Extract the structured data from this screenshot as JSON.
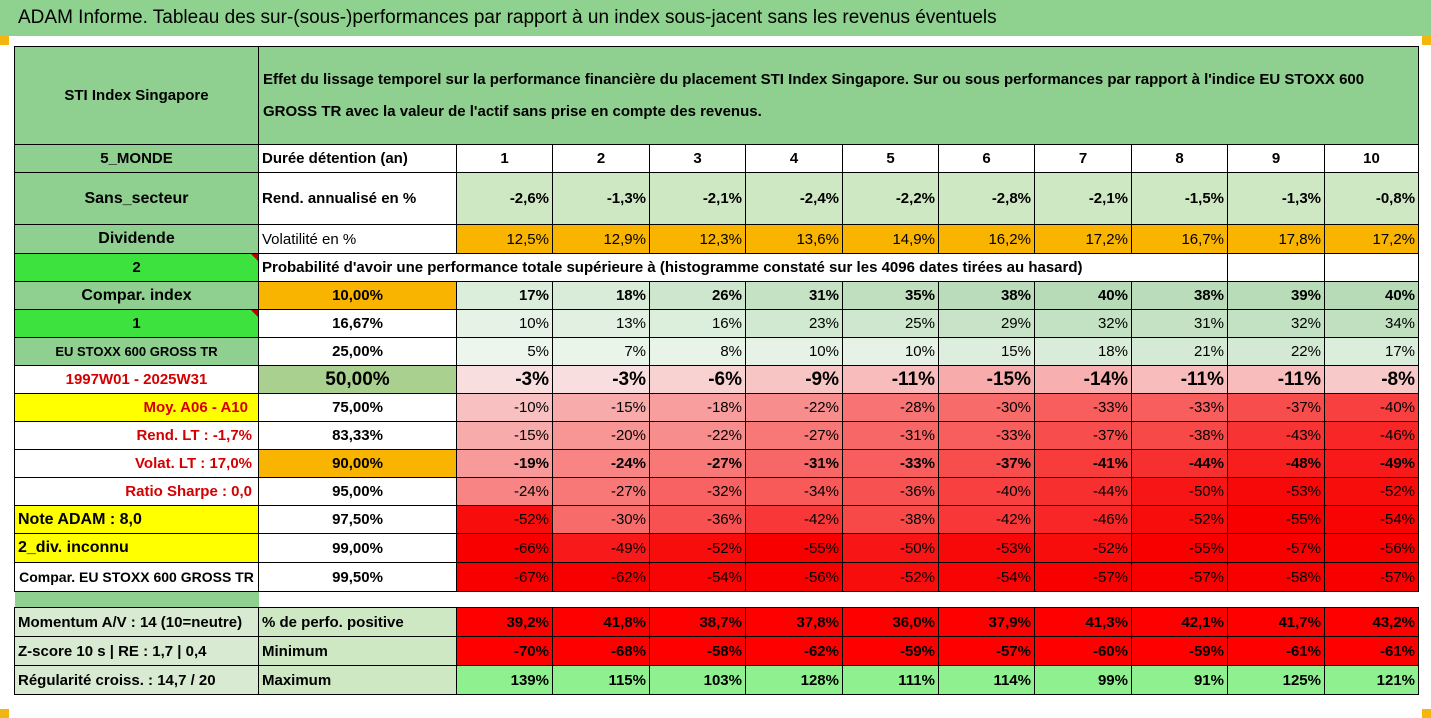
{
  "title": "ADAM Informe. Tableau des sur-(sous-)performances par rapport à un index sous-jacent sans les revenus éventuels",
  "header": {
    "asset": "STI Index Singapore",
    "description": "Effet du lissage temporel sur la performance financière du placement STI Index Singapore. Sur ou sous performances par rapport à l'indice EU STOXX 600 GROSS TR avec la valeur de l'actif sans prise en compte des revenus."
  },
  "colors": {
    "label_green": "#8fcf8f",
    "orange": "#f9b400",
    "bright_green": "#3ee23e",
    "yellow": "#ffff00",
    "red_text": "#d40000"
  },
  "rows": {
    "duration": {
      "left": "5_MONDE",
      "label": "Durée détention (an)",
      "values": [
        "1",
        "2",
        "3",
        "4",
        "5",
        "6",
        "7",
        "8",
        "9",
        "10"
      ]
    },
    "annual": {
      "left": "Sans_secteur",
      "label": "Rend. annualisé en %",
      "values": [
        "-2,6%",
        "-1,3%",
        "-2,1%",
        "-2,4%",
        "-2,2%",
        "-2,8%",
        "-2,1%",
        "-1,5%",
        "-1,3%",
        "-0,8%"
      ]
    },
    "volatility": {
      "left": "Dividende",
      "label": "Volatilité en %",
      "values": [
        "12,5%",
        "12,9%",
        "12,3%",
        "13,6%",
        "14,9%",
        "16,2%",
        "17,2%",
        "16,7%",
        "17,8%",
        "17,2%"
      ]
    },
    "prob_header": {
      "left": "2",
      "text": "Probabilité d'avoir une performance totale supérieure à (histogramme constaté sur les 4096 dates tirées au hasard)"
    },
    "quantiles": [
      {
        "left": "Compar. index",
        "q": "10,00%",
        "values": [
          "17%",
          "18%",
          "26%",
          "31%",
          "35%",
          "38%",
          "40%",
          "38%",
          "39%",
          "40%"
        ]
      },
      {
        "left": "1",
        "q": "16,67%",
        "values": [
          "10%",
          "13%",
          "16%",
          "23%",
          "25%",
          "29%",
          "32%",
          "31%",
          "32%",
          "34%"
        ]
      },
      {
        "left": "EU STOXX 600 GROSS TR",
        "q": "25,00%",
        "values": [
          "5%",
          "7%",
          "8%",
          "10%",
          "10%",
          "15%",
          "18%",
          "21%",
          "22%",
          "17%"
        ]
      },
      {
        "left": "1997W01 - 2025W31",
        "q": "50,00%",
        "values": [
          "-3%",
          "-3%",
          "-6%",
          "-9%",
          "-11%",
          "-15%",
          "-14%",
          "-11%",
          "-11%",
          "-8%"
        ]
      },
      {
        "left": "Moy. A06 - A10",
        "q": "75,00%",
        "values": [
          "-10%",
          "-15%",
          "-18%",
          "-22%",
          "-28%",
          "-30%",
          "-33%",
          "-33%",
          "-37%",
          "-40%"
        ]
      },
      {
        "left": "Rend. LT :   -1,7%",
        "q": "83,33%",
        "values": [
          "-15%",
          "-20%",
          "-22%",
          "-27%",
          "-31%",
          "-33%",
          "-37%",
          "-38%",
          "-43%",
          "-46%"
        ]
      },
      {
        "left": "Volat. LT :   17,0%",
        "q": "90,00%",
        "values": [
          "-19%",
          "-24%",
          "-27%",
          "-31%",
          "-33%",
          "-37%",
          "-41%",
          "-44%",
          "-48%",
          "-49%"
        ]
      },
      {
        "left": "Ratio Sharpe :   0,0",
        "q": "95,00%",
        "values": [
          "-24%",
          "-27%",
          "-32%",
          "-34%",
          "-36%",
          "-40%",
          "-44%",
          "-50%",
          "-53%",
          "-52%"
        ]
      },
      {
        "left": "Note ADAM : 8,0",
        "q": "97,50%",
        "values": [
          "-52%",
          "-30%",
          "-36%",
          "-42%",
          "-38%",
          "-42%",
          "-46%",
          "-52%",
          "-55%",
          "-54%"
        ]
      },
      {
        "left": "2_div. inconnu",
        "q": "99,00%",
        "values": [
          "-66%",
          "-49%",
          "-52%",
          "-55%",
          "-50%",
          "-53%",
          "-52%",
          "-55%",
          "-57%",
          "-56%"
        ]
      },
      {
        "left": "Compar. EU STOXX 600 GROSS TR",
        "q": "99,50%",
        "values": [
          "-67%",
          "-62%",
          "-54%",
          "-56%",
          "-52%",
          "-54%",
          "-57%",
          "-57%",
          "-58%",
          "-57%"
        ]
      }
    ],
    "positive": {
      "left": "Momentum A/V : 14 (10=neutre)",
      "label": "% de perfo. positive",
      "values": [
        "39,2%",
        "41,8%",
        "38,7%",
        "37,8%",
        "36,0%",
        "37,9%",
        "41,3%",
        "42,1%",
        "41,7%",
        "43,2%"
      ]
    },
    "minimum": {
      "left": "Z-score 10 s  | RE : 1,7 | 0,4",
      "label": "Minimum",
      "values": [
        "-70%",
        "-68%",
        "-58%",
        "-62%",
        "-59%",
        "-57%",
        "-60%",
        "-59%",
        "-61%",
        "-61%"
      ]
    },
    "maximum": {
      "left": "Régularité croiss. : 14,7 / 20",
      "label": "Maximum",
      "values": [
        "139%",
        "115%",
        "103%",
        "128%",
        "111%",
        "114%",
        "99%",
        "91%",
        "125%",
        "121%"
      ]
    }
  }
}
